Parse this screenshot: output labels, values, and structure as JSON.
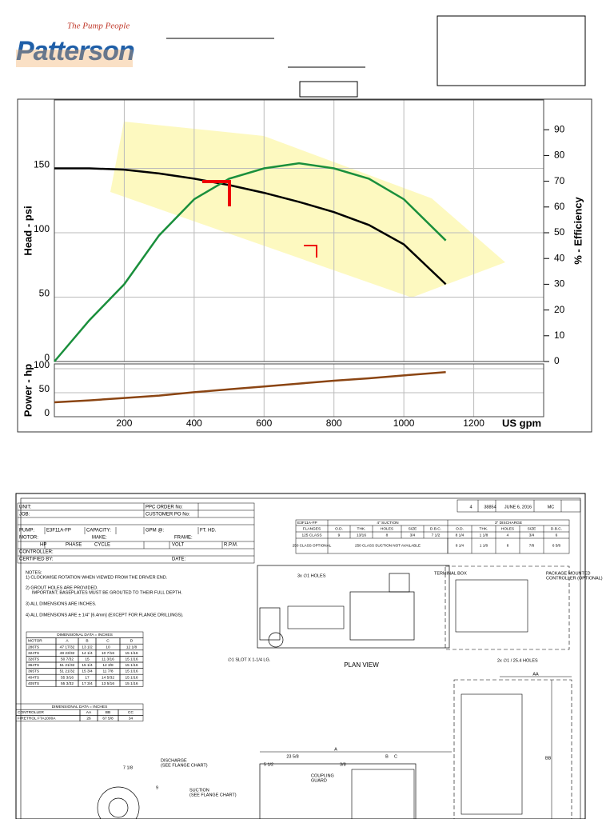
{
  "header": {
    "tagline": "The Pump People",
    "logo": "Patterson"
  },
  "chart_data": [
    {
      "type": "line",
      "ylabel": "Head - psi",
      "y2label": "% - Efficiency",
      "x": [
        0,
        100,
        200,
        300,
        400,
        500,
        600,
        700,
        800,
        900,
        1000,
        1120
      ],
      "series": [
        {
          "color": "#000000",
          "values": [
            150,
            150,
            149,
            146,
            142,
            137,
            131,
            124,
            116,
            106,
            91,
            60
          ]
        },
        {
          "color": "#1a8f3c",
          "axis": "y2",
          "values": [
            0,
            16,
            30,
            49,
            63,
            71,
            75,
            77,
            75,
            71,
            63,
            47
          ]
        }
      ],
      "xlim": [
        0,
        1400
      ],
      "xticks": [
        200,
        400,
        600,
        800,
        1000,
        1200
      ],
      "ylim": [
        0,
        200
      ],
      "yticks": [
        0,
        50,
        100,
        150
      ],
      "y2lim": [
        0,
        100
      ],
      "y2ticks": [
        0,
        10,
        20,
        30,
        40,
        50,
        60,
        70,
        80,
        90
      ],
      "grid": true
    },
    {
      "type": "line",
      "ylabel": "Power - hp",
      "xlabel": "US gpm",
      "x": [
        0,
        100,
        200,
        300,
        400,
        500,
        600,
        700,
        800,
        900,
        1000,
        1120
      ],
      "series": [
        {
          "color": "#8b4513",
          "values": [
            30,
            34,
            39,
            44,
            51,
            57,
            63,
            69,
            75,
            80,
            86,
            93
          ]
        }
      ],
      "xlim": [
        0,
        1400
      ],
      "xticks": [
        200,
        400,
        600,
        800,
        1000,
        1200
      ],
      "ylim": [
        0,
        110
      ],
      "yticks": [
        0,
        50,
        100
      ],
      "grid": true
    }
  ],
  "drawing": {
    "title_block": [
      "4",
      "38854",
      "JUNE 6, 2016",
      "MC"
    ],
    "info": {
      "unit": "UNIT:",
      "job": "JOB:",
      "ppc_order": "PPC ORDER No:",
      "customer_po": "CUSTOMER PO No:",
      "pump": "PUMP:",
      "pump_model": "E3F11A-FP",
      "capacity": "CAPACITY:",
      "gpm": "GPM @:",
      "ft_hd": "FT. HD.",
      "motor": "MOTOR:",
      "make": "MAKE:",
      "frame": "FRAME:",
      "hp": "HP",
      "phase": "PHASE",
      "cycle": "CYCLE",
      "volt": "VOLT",
      "rpm": "R.P.M.",
      "controller": "CONTROLLER:",
      "certified": "CERTIFIED BY:",
      "date": "DATE:"
    },
    "notes": [
      "NOTES:",
      "1) CLOCKWISE ROTATION WHEN VIEWED FROM THE DRIVER END.",
      "2) GROUT HOLES ARE PROVIDED.",
      "IMPORTANT; BASEPLATES MUST BE GROUTED TO THEIR FULL DEPTH.",
      "3) ALL DIMENSIONS ARE INCHES.",
      "4) ALL DIMENSIONS ARE ± 1/4\" [6.4mm] (EXCEPT FOR FLANGE DRILLINGS)."
    ],
    "motor_table": {
      "title": "DIMENSIONAL DATA = INCHES",
      "columns": [
        "MOTOR",
        "A",
        "B",
        "C",
        "D"
      ],
      "rows": [
        [
          "286TS",
          "47 17/32",
          "13 1/2",
          "10",
          "12 1/8"
        ],
        [
          "324TS",
          "48 23/32",
          "14 1/4",
          "10 7/16",
          "15 1/16"
        ],
        [
          "326TS",
          "50 7/32",
          "15",
          "11 3/16",
          "15 1/16"
        ],
        [
          "364TS",
          "51 21/32",
          "15 1/4",
          "12 3/8",
          "15 1/16"
        ],
        [
          "365TS",
          "51 21/32",
          "15 3/4",
          "11 7/8",
          "15 1/16"
        ],
        [
          "404TS",
          "55 3/16",
          "17",
          "14 5/32",
          "15 1/16"
        ],
        [
          "405TS",
          "55 3/32",
          "17 3/4",
          "13 5/16",
          "15 1/16"
        ]
      ]
    },
    "controller_table": {
      "title": "DIMENSIONAL DATA = INCHES",
      "columns": [
        "CONTROLLER",
        "AA",
        "BB",
        "CC"
      ],
      "rows": [
        [
          "FIRETROL FTA1000A",
          "26",
          "67 5/8",
          "34"
        ]
      ]
    },
    "flange_table": {
      "model": "E3F11A-FP",
      "suction": "4\" SUCTION",
      "discharge": "3\" DISCHARGE",
      "columns": [
        "FLANGES",
        "O.D.",
        "THK.",
        "HOLES",
        "SIZE",
        "D.B.C.",
        "O.D.",
        "THK.",
        "HOLES",
        "SIZE",
        "D.B.C."
      ],
      "rows": [
        [
          "125 CLASS",
          "9",
          "13/16",
          "8",
          "3/4",
          "7 1/2",
          "8 1/4",
          "1 1/8",
          "4",
          "3/4",
          "6"
        ],
        [
          "250 CLASS OPTIONAL",
          "250 CLASS SUCTION NOT AVAILABLE",
          "8 1/4",
          "1 1/8",
          "8",
          "7/8",
          "6 5/8"
        ]
      ]
    },
    "callouts": {
      "holes3": "3x ∅1 HOLES",
      "terminal_box": "TERMINAL BOX",
      "controller": [
        "PACKAGE MOUNTED",
        "CONTROLLER (OPTIONAL)"
      ],
      "slot": "∅1 SLOT X 1-1/4 LG.",
      "plan_view": "PLAN VIEW",
      "holes2": "2x ∅1 / 25.4 HOLES",
      "aa": "AA",
      "bb": "BB",
      "a": "A",
      "b": "B",
      "c": "C",
      "dim_23": "23 5/8",
      "dim_5": "5 1/2",
      "dim_38": "3/8",
      "coupling": [
        "COUPLING",
        "GUARD"
      ],
      "suction": [
        "SUCTION",
        "(SEE FLANGE CHART)"
      ],
      "discharge": [
        "DISCHARGE",
        "(SEE FLANGE CHART)"
      ],
      "dim_7": "7 1/8",
      "dim_9": "9"
    }
  }
}
